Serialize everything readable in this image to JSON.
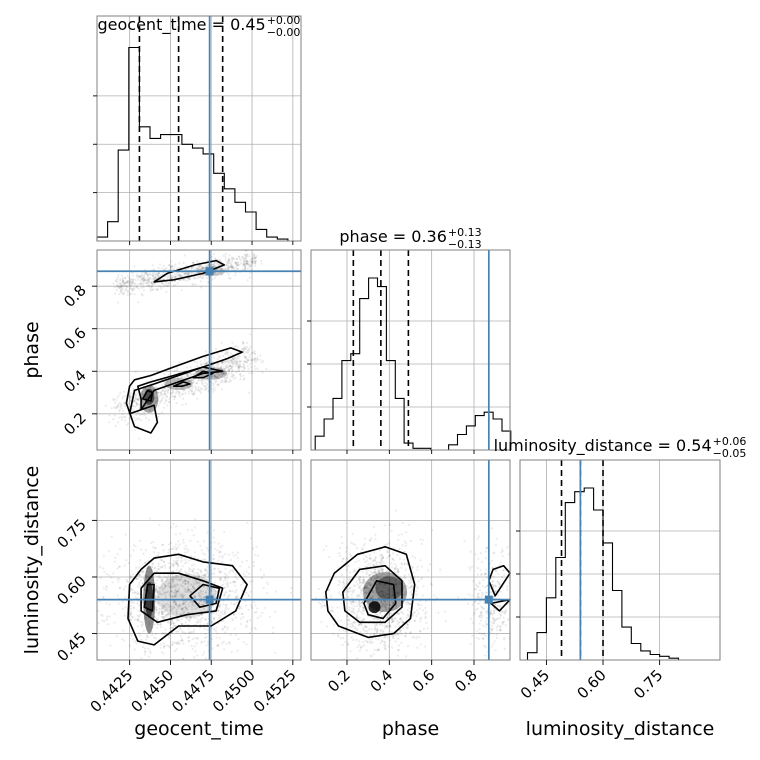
{
  "chart_data": {
    "type": "corner",
    "parameters": [
      "geocent_time",
      "phase",
      "luminosity_distance"
    ],
    "axis_labels": {
      "geocent_time": "geocent_time",
      "phase": "phase",
      "luminosity_distance": "luminosity_distance"
    },
    "ranges": {
      "geocent_time": [
        0.4405,
        0.453
      ],
      "phase": [
        0.03,
        0.97
      ],
      "luminosity_distance": [
        0.38,
        0.91
      ]
    },
    "injection": {
      "geocent_time": 0.4474,
      "phase": 0.87,
      "luminosity_distance": 0.54
    },
    "titles": [
      {
        "param": "geocent_time",
        "main": "geocent_time = 0.45",
        "plus": "+0.00",
        "minus": "−0.00"
      },
      {
        "param": "phase",
        "main": "phase = 0.36",
        "plus": "+0.13",
        "minus": "−0.13"
      },
      {
        "param": "luminosity_distance",
        "main": "luminosity_distance = 0.54",
        "plus": "+0.06",
        "minus": "−0.05"
      }
    ],
    "quantile_lines": {
      "geocent_time": [
        0.4431,
        0.4455,
        0.4482
      ],
      "phase": [
        0.23,
        0.36,
        0.49
      ],
      "luminosity_distance": [
        0.49,
        0.54,
        0.6
      ]
    },
    "ticks": {
      "geocent_time": {
        "values": [
          0.4425,
          0.445,
          0.4475,
          0.45,
          0.4525
        ],
        "labels": [
          "0.4425",
          "0.4450",
          "0.4475",
          "0.4500",
          "0.4525"
        ]
      },
      "phase_x": {
        "values": [
          0.2,
          0.4,
          0.6,
          0.8
        ],
        "labels": [
          "0.2",
          "0.4",
          "0.6",
          "0.8"
        ]
      },
      "phase_y": {
        "values": [
          0.2,
          0.4,
          0.6,
          0.8
        ],
        "labels": [
          "0.2",
          "0.4",
          "0.6",
          "0.8"
        ]
      },
      "luminosity_distance": {
        "values": [
          0.45,
          0.6,
          0.75
        ],
        "labels": [
          "0.45",
          "0.60",
          "0.75"
        ]
      }
    },
    "hist_geocent_time": {
      "edges": [
        0.4405,
        0.44115,
        0.4418,
        0.44245,
        0.4431,
        0.44375,
        0.4444,
        0.44505,
        0.4457,
        0.44635,
        0.447,
        0.44765,
        0.4483,
        0.44895,
        0.4496,
        0.45025,
        0.4509,
        0.45155,
        0.4522
      ],
      "counts": [
        2,
        10,
        47,
        100,
        59,
        53,
        55,
        55,
        50,
        48,
        45,
        35,
        27,
        20,
        15,
        6,
        2,
        1
      ]
    },
    "hist_phase": {
      "edges": [
        0.05,
        0.092,
        0.134,
        0.176,
        0.218,
        0.26,
        0.302,
        0.344,
        0.386,
        0.428,
        0.47,
        0.512,
        0.554,
        0.596,
        0.638,
        0.68,
        0.722,
        0.764,
        0.806,
        0.848,
        0.89,
        0.932,
        0.974
      ],
      "counts": [
        8,
        18,
        30,
        52,
        56,
        88,
        100,
        95,
        52,
        30,
        4,
        1,
        1,
        0,
        0,
        3,
        9,
        14,
        20,
        22,
        18,
        11
      ]
    },
    "hist_luminosity_distance": {
      "edges": [
        0.4,
        0.425,
        0.45,
        0.475,
        0.5,
        0.525,
        0.55,
        0.575,
        0.6,
        0.625,
        0.65,
        0.675,
        0.7,
        0.725,
        0.75,
        0.775,
        0.8
      ],
      "counts": [
        4,
        15,
        34,
        56,
        86,
        92,
        94,
        82,
        64,
        38,
        18,
        9,
        5,
        3,
        2,
        1
      ]
    },
    "grid": true
  }
}
